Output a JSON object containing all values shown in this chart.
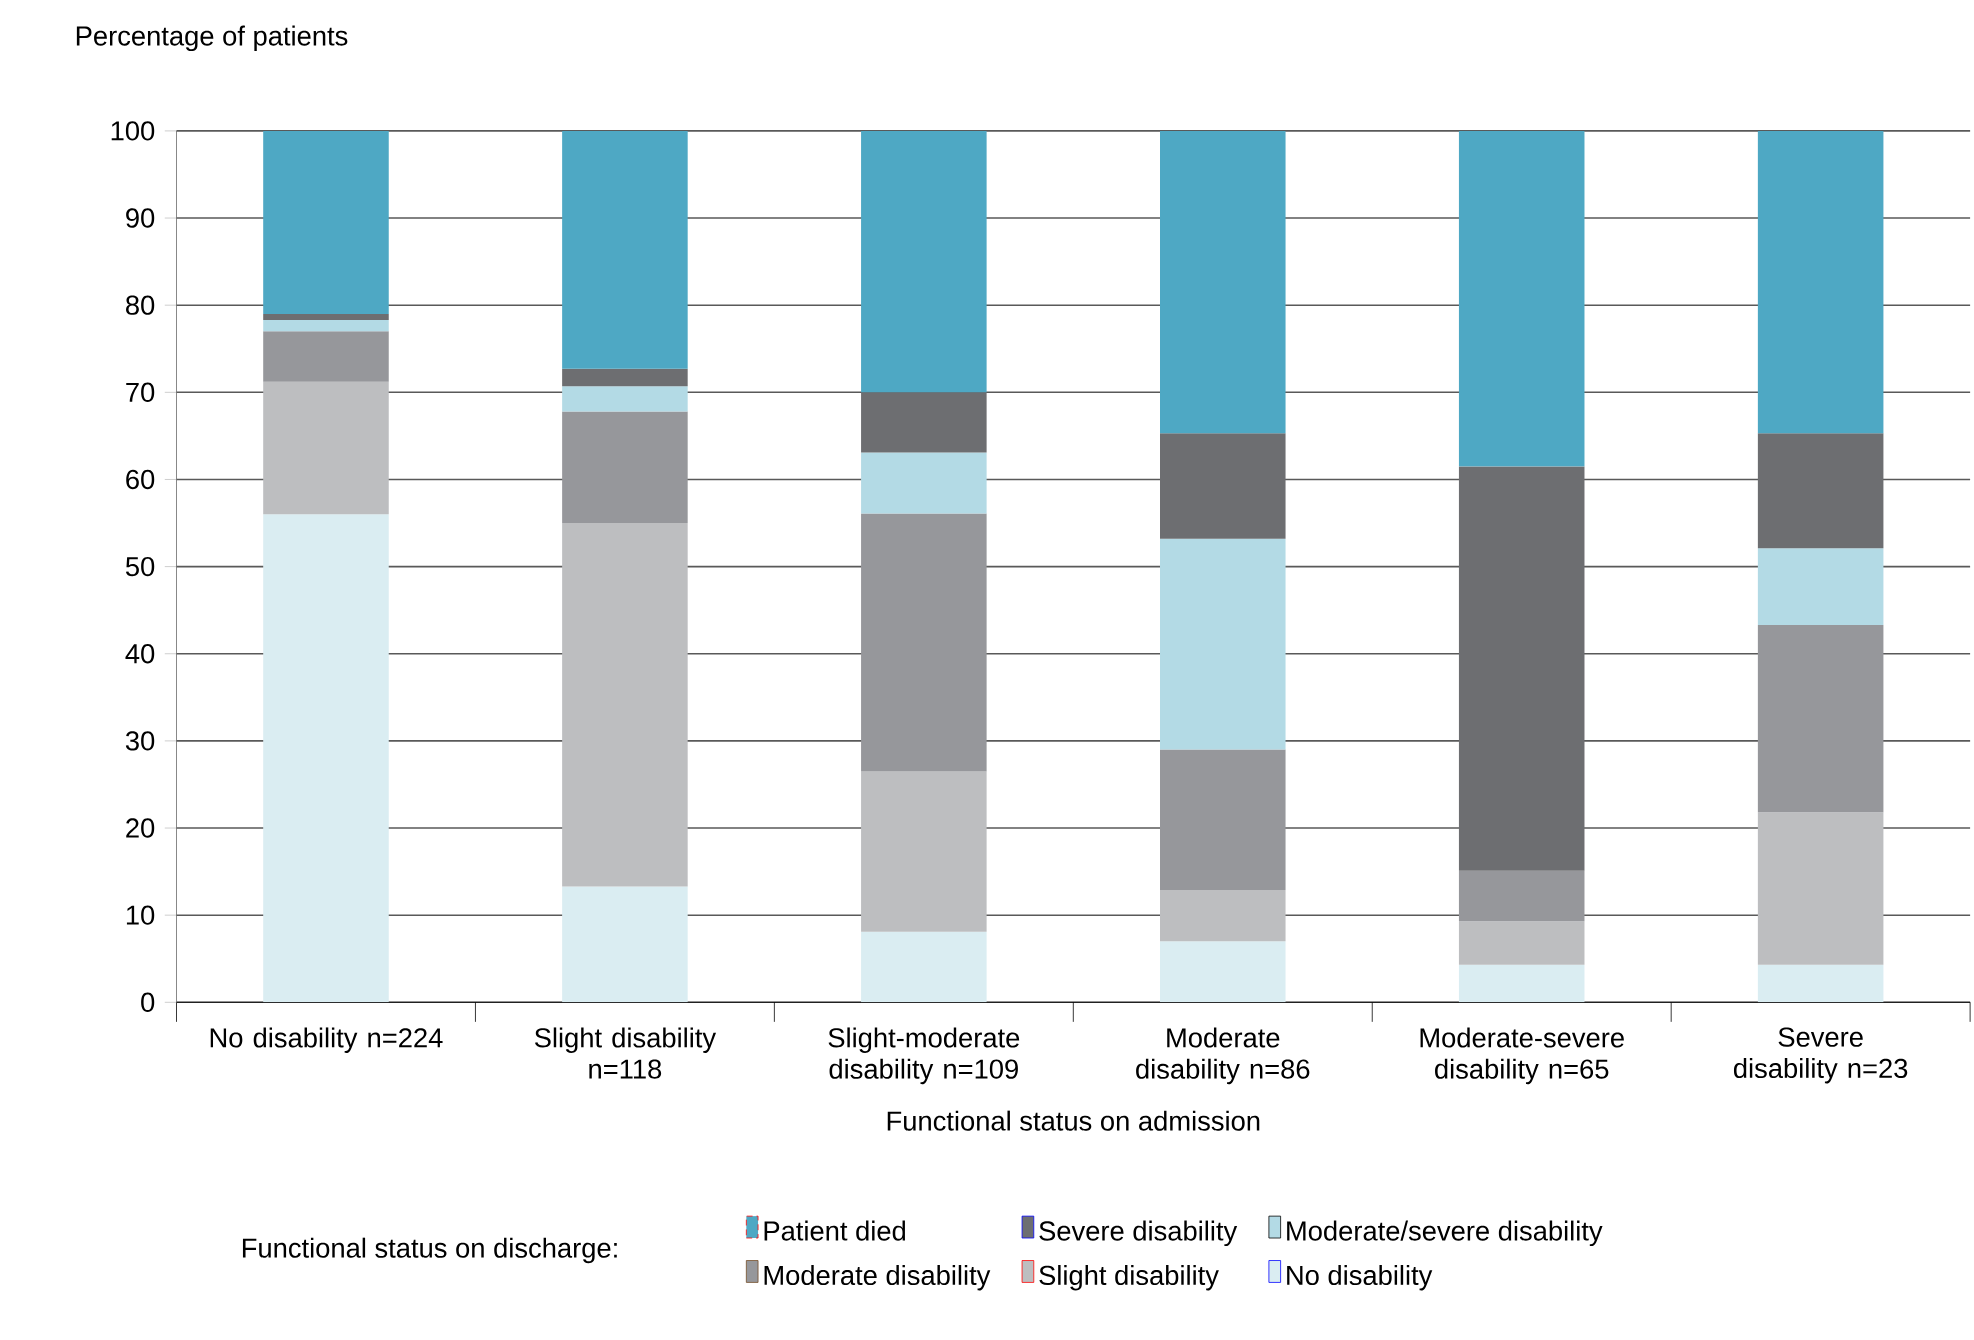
{
  "chart_data": {
    "type": "bar",
    "stacked": true,
    "xlabel": "Functional status on admission",
    "ylabel": "Percentage of patients",
    "legend_title": "Functional status on discharge:",
    "categories": [
      "No disability n=224",
      "Slight disability n=118",
      "Slight-moderate disability n=109",
      "Moderate disability n=86",
      "Moderate-severe disability n=65",
      "Severe disability n=23"
    ],
    "series": [
      {
        "name": "No disability",
        "color": "#daedf2",
        "values": [
          56.0,
          13.3,
          8.1,
          7.0,
          4.3,
          4.3
        ]
      },
      {
        "name": "Slight disability",
        "color": "#bdbec0",
        "values": [
          15.2,
          41.7,
          18.4,
          5.9,
          5.0,
          17.5
        ]
      },
      {
        "name": "Moderate disability",
        "color": "#96979b",
        "values": [
          5.8,
          12.8,
          29.6,
          16.1,
          5.8,
          21.5
        ]
      },
      {
        "name": "Moderate/severe disability",
        "color": "#b3dae5",
        "values": [
          1.3,
          2.9,
          7.0,
          24.2,
          0,
          8.8
        ]
      },
      {
        "name": "Severe disability",
        "color": "#6d6e71",
        "values": [
          0.7,
          2.0,
          6.9,
          12.1,
          46.4,
          13.2
        ]
      },
      {
        "name": "Patient died",
        "color": "#4ea8c4",
        "values": [
          21.0,
          27.3,
          30.0,
          34.7,
          38.5,
          34.7
        ]
      }
    ],
    "ylim": [
      0,
      100
    ],
    "yticks": [
      0,
      10,
      20,
      30,
      40,
      50,
      60,
      70,
      80,
      90,
      100
    ],
    "grid": "y",
    "legend": "bottom"
  }
}
